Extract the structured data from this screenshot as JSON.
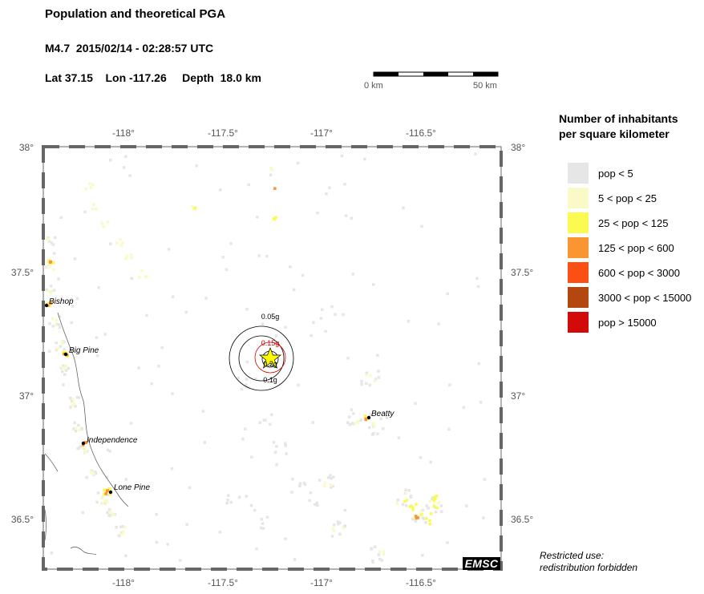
{
  "header": {
    "title": "Population and theoretical PGA",
    "event": "M4.7  2015/02/14 - 02:28:57 UTC",
    "location": "Lat 37.15    Lon -117.26     Depth  18.0 km"
  },
  "scale_bar": {
    "start_label": "0 km",
    "end_label": "50 km"
  },
  "axes": {
    "lon_ticks": [
      "-118°",
      "-117.5°",
      "-117°",
      "-116.5°"
    ],
    "lat_ticks": [
      "38°",
      "37.5°",
      "37°",
      "36.5°"
    ]
  },
  "epicenter": {
    "lat": 37.15,
    "lon": -117.26
  },
  "pga_contours": [
    {
      "label": "0.05g",
      "color": "#000000"
    },
    {
      "label": "0.1g",
      "color": "#000000"
    },
    {
      "label": "0.15g",
      "color": "#d40000"
    },
    {
      "label": "0.2g",
      "color": "#000000"
    }
  ],
  "cities": [
    {
      "name": "Bishop",
      "lat": 37.36,
      "lon": -118.4
    },
    {
      "name": "Big Pine",
      "lat": 37.17,
      "lon": -118.29
    },
    {
      "name": "Independence",
      "lat": 36.8,
      "lon": -118.2
    },
    {
      "name": "Lone Pine",
      "lat": 36.61,
      "lon": -118.06
    },
    {
      "name": "Beatty",
      "lat": 36.91,
      "lon": -116.76
    }
  ],
  "legend": {
    "title_line1": "Number of inhabitants",
    "title_line2": "per square kilometer",
    "items": [
      {
        "label": "pop < 5",
        "color": "#e6e6e6"
      },
      {
        "label": "5 < pop < 25",
        "color": "#fafac8"
      },
      {
        "label": "25 < pop < 125",
        "color": "#fafa50"
      },
      {
        "label": "125 < pop < 600",
        "color": "#fa9632"
      },
      {
        "label": "600 < pop < 3000",
        "color": "#fa5014"
      },
      {
        "label": "3000 < pop < 15000",
        "color": "#b4460f"
      },
      {
        "label": "pop > 15000",
        "color": "#d20a0a"
      }
    ]
  },
  "logo": "EMSC",
  "notice_line1": "Restricted use:",
  "notice_line2": "redistribution forbidden"
}
